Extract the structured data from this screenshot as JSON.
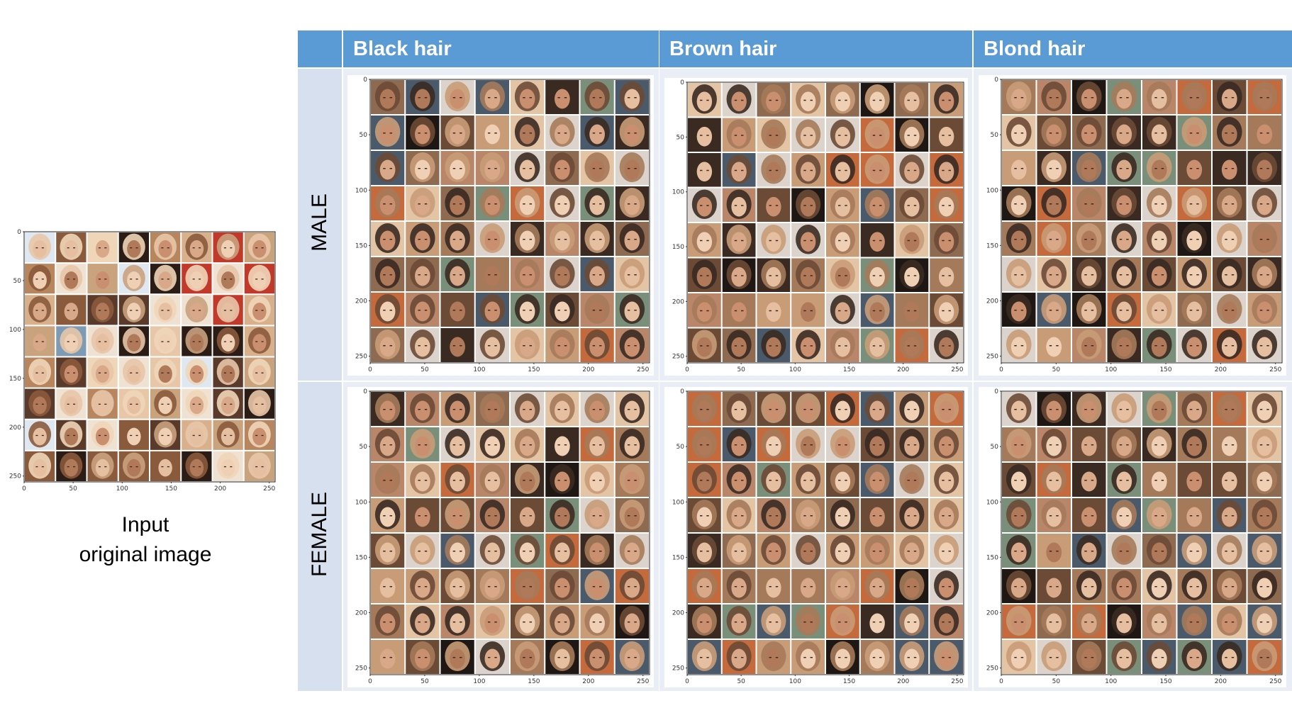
{
  "input": {
    "caption_line1": "Input",
    "caption_line2": "original image"
  },
  "columns": [
    "Black hair",
    "Brown hair",
    "Blond hair"
  ],
  "rows": [
    "MALE",
    "FEMALE"
  ],
  "axis": {
    "y_ticks": [
      "0",
      "50",
      "100",
      "150",
      "200",
      "250"
    ],
    "x_ticks": [
      "0",
      "50",
      "100",
      "150",
      "200",
      "250"
    ],
    "range": [
      0,
      256
    ]
  },
  "grid": {
    "rows": 8,
    "cols": 8
  },
  "colors": {
    "header_bg": "#5b9bd5",
    "header_text": "#ffffff",
    "row_label_bg": "#d6e0ef",
    "cell_bg": "#e9eef6"
  }
}
